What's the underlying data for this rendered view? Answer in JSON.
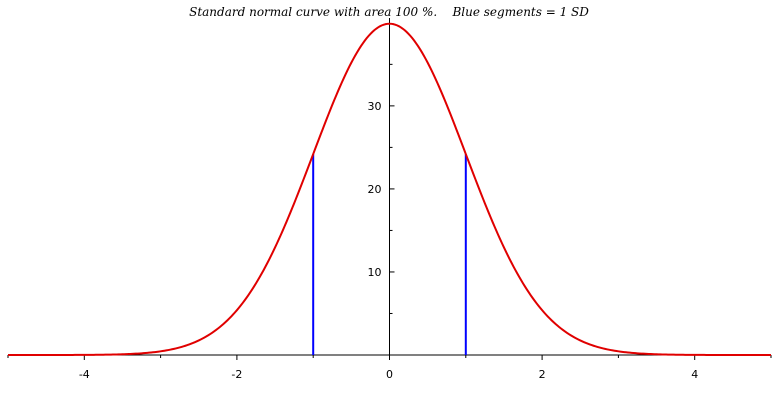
{
  "chart_data": {
    "type": "line",
    "title": "Standard normal curve with area 100 %.    Blue segments = 1 SD",
    "xlabel": "",
    "ylabel": "",
    "xlim": [
      -5,
      5
    ],
    "ylim": [
      0,
      40
    ],
    "x_ticks": [
      -4,
      -2,
      0,
      2,
      4
    ],
    "x_tick_labels": [
      "-4",
      "-2",
      "0",
      "2",
      "4"
    ],
    "y_ticks": [
      10,
      20,
      30
    ],
    "y_tick_labels": [
      "10",
      "20",
      "30"
    ],
    "grid": false,
    "series": [
      {
        "color": "#e00000",
        "function": "100 * standard normal density",
        "x": [
          -5,
          -4,
          -3.5,
          -3,
          -2.5,
          -2,
          -1.5,
          -1,
          -0.5,
          0,
          0.5,
          1,
          1.5,
          2,
          2.5,
          3,
          3.5,
          4,
          5
        ],
        "y": [
          0.0,
          0.01,
          0.09,
          0.44,
          1.75,
          5.4,
          12.95,
          24.2,
          35.21,
          39.89,
          35.21,
          24.2,
          12.95,
          5.4,
          1.75,
          0.44,
          0.09,
          0.01,
          0.0
        ]
      }
    ],
    "sd_segments": {
      "color": "#0000ff",
      "x": [
        -1,
        1
      ],
      "height": 24.2
    },
    "axis_color": "#000000"
  }
}
